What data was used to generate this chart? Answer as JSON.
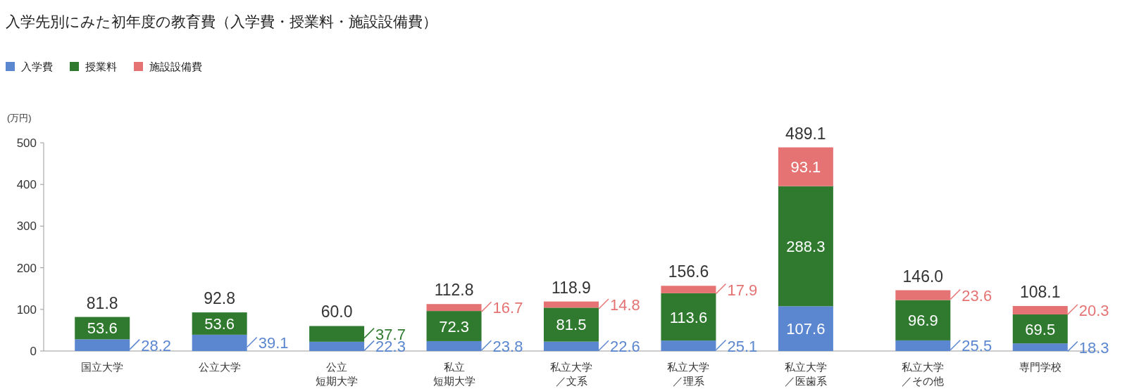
{
  "chart_data": {
    "type": "bar",
    "title": "入学先別にみた初年度の教育費（入学費・授業料・施設設備費）",
    "ylabel": "(万円)",
    "categories": [
      "国立大学",
      "公立大学",
      "公立短期大学",
      "私立短期大学",
      "私立大学／文系",
      "私立大学／理系",
      "私立大学／医歯系",
      "私立大学／その他",
      "専門学校"
    ],
    "series": [
      {
        "name": "入学費",
        "color": "#5b87d0",
        "values": [
          28.2,
          39.1,
          22.3,
          23.8,
          22.6,
          25.1,
          107.6,
          25.5,
          18.3
        ]
      },
      {
        "name": "授業料",
        "color": "#2f7a2f",
        "values": [
          53.6,
          53.6,
          37.7,
          72.3,
          81.5,
          113.6,
          288.3,
          96.9,
          69.5
        ]
      },
      {
        "name": "施設設備費",
        "color": "#e57373",
        "values": [
          null,
          null,
          null,
          16.7,
          14.8,
          17.9,
          93.1,
          23.6,
          20.3
        ]
      }
    ],
    "stacked": true,
    "ylim": [
      0,
      500
    ],
    "yticks": [
      0,
      100,
      200,
      300,
      400,
      500
    ],
    "data_labels": true,
    "totals": [
      "81.8",
      "92.8",
      "60.0",
      "112.8",
      "118.9",
      "156.6",
      "489.1",
      "146.0",
      "108.1"
    ],
    "legend": "top left",
    "grid": false
  }
}
